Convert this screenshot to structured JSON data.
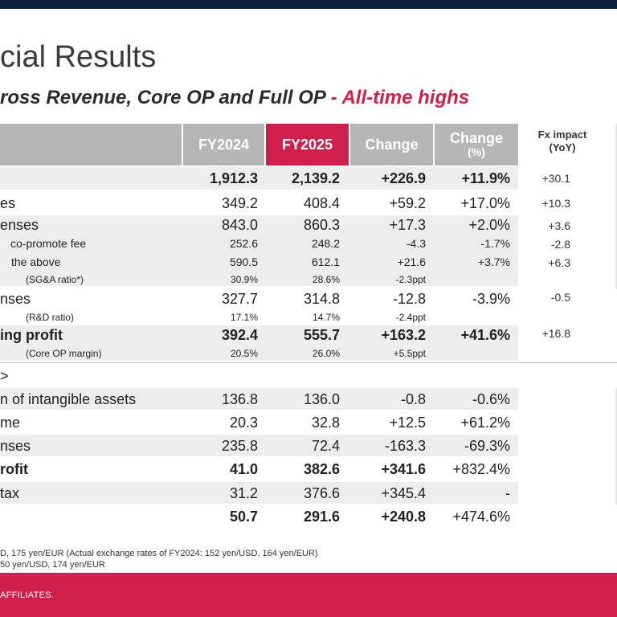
{
  "title": "cial Results",
  "subtitle": {
    "main": "ross Revenue, Core OP and Full OP",
    "highlight": " - All-time highs"
  },
  "headers": {
    "fy2024": "FY2024",
    "fy2025": "FY2025",
    "change": "Change",
    "change_pct": "Change",
    "change_pct_unit": "(%)",
    "fx": "Fx impact",
    "fx_sub": "(YoY)"
  },
  "rows": [
    {
      "label": "",
      "fy2024": "1,912.3",
      "fy2025": "2,139.2",
      "change": "+226.9",
      "change_pct": "+11.9%",
      "fx": "+30.1"
    },
    {
      "label": "es",
      "fy2024": "349.2",
      "fy2025": "408.4",
      "change": "+59.2",
      "change_pct": "+17.0%",
      "fx": "+10.3"
    },
    {
      "label": "enses",
      "fy2024": "843.0",
      "fy2025": "860.3",
      "change": "+17.3",
      "change_pct": "+2.0%",
      "fx": "+3.6"
    },
    {
      "label": "co-promote fee",
      "fy2024": "252.6",
      "fy2025": "248.2",
      "change": "-4.3",
      "change_pct": "-1.7%",
      "fx": "-2.8"
    },
    {
      "label": "the above",
      "fy2024": "590.5",
      "fy2025": "612.1",
      "change": "+21.6",
      "change_pct": "+3.7%",
      "fx": "+6.3"
    },
    {
      "label": "(SG&A ratio*)",
      "fy2024": "30.9%",
      "fy2025": "28.6%",
      "change": "-2.3ppt",
      "change_pct": "",
      "fx": ""
    },
    {
      "label": "nses",
      "fy2024": "327.7",
      "fy2025": "314.8",
      "change": "-12.8",
      "change_pct": "-3.9%",
      "fx": "-0.5"
    },
    {
      "label": "(R&D ratio)",
      "fy2024": "17.1%",
      "fy2025": "14.7%",
      "change": "-2.4ppt",
      "change_pct": "",
      "fx": ""
    },
    {
      "label": "ing profit",
      "fy2024": "392.4",
      "fy2025": "555.7",
      "change": "+163.2",
      "change_pct": "+41.6%",
      "fx": "+16.8"
    },
    {
      "label": "(Core OP margin)",
      "fy2024": "20.5%",
      "fy2025": "26.0%",
      "change": "+5.5ppt",
      "change_pct": "",
      "fx": ""
    },
    {
      "label": ">",
      "fy2024": "",
      "fy2025": "",
      "change": "",
      "change_pct": "",
      "fx": ""
    },
    {
      "label": "n of intangible assets",
      "fy2024": "136.8",
      "fy2025": "136.0",
      "change": "-0.8",
      "change_pct": "-0.6%",
      "fx": ""
    },
    {
      "label": "me",
      "fy2024": "20.3",
      "fy2025": "32.8",
      "change": "+12.5",
      "change_pct": "+61.2%",
      "fx": ""
    },
    {
      "label": "nses",
      "fy2024": "235.8",
      "fy2025": "72.4",
      "change": "-163.3",
      "change_pct": "-69.3%",
      "fx": ""
    },
    {
      "label": "rofit",
      "fy2024": "41.0",
      "fy2025": "382.6",
      "change": "+341.6",
      "change_pct": "+832.4%",
      "fx": ""
    },
    {
      "label": "tax",
      "fy2024": "31.2",
      "fy2025": "376.6",
      "change": "+345.4",
      "change_pct": "-",
      "fx": ""
    },
    {
      "label": "",
      "fy2024": "50.7",
      "fy2025": "291.6",
      "change": "+240.8",
      "change_pct": "+474.6%",
      "fx": ""
    }
  ],
  "footnotes": [
    "D, 175 yen/EUR (Actual exchange rates of FY2024: 152 yen/USD, 164 yen/EUR)",
    "50 yen/USD, 174 yen/EUR"
  ],
  "footer": "AFFILIATES.",
  "colors": {
    "accent": "#cf1f4a",
    "header_grey": "#b6b6b6",
    "top_bar": "#0c1f3d",
    "row_shade": "#ededed"
  }
}
